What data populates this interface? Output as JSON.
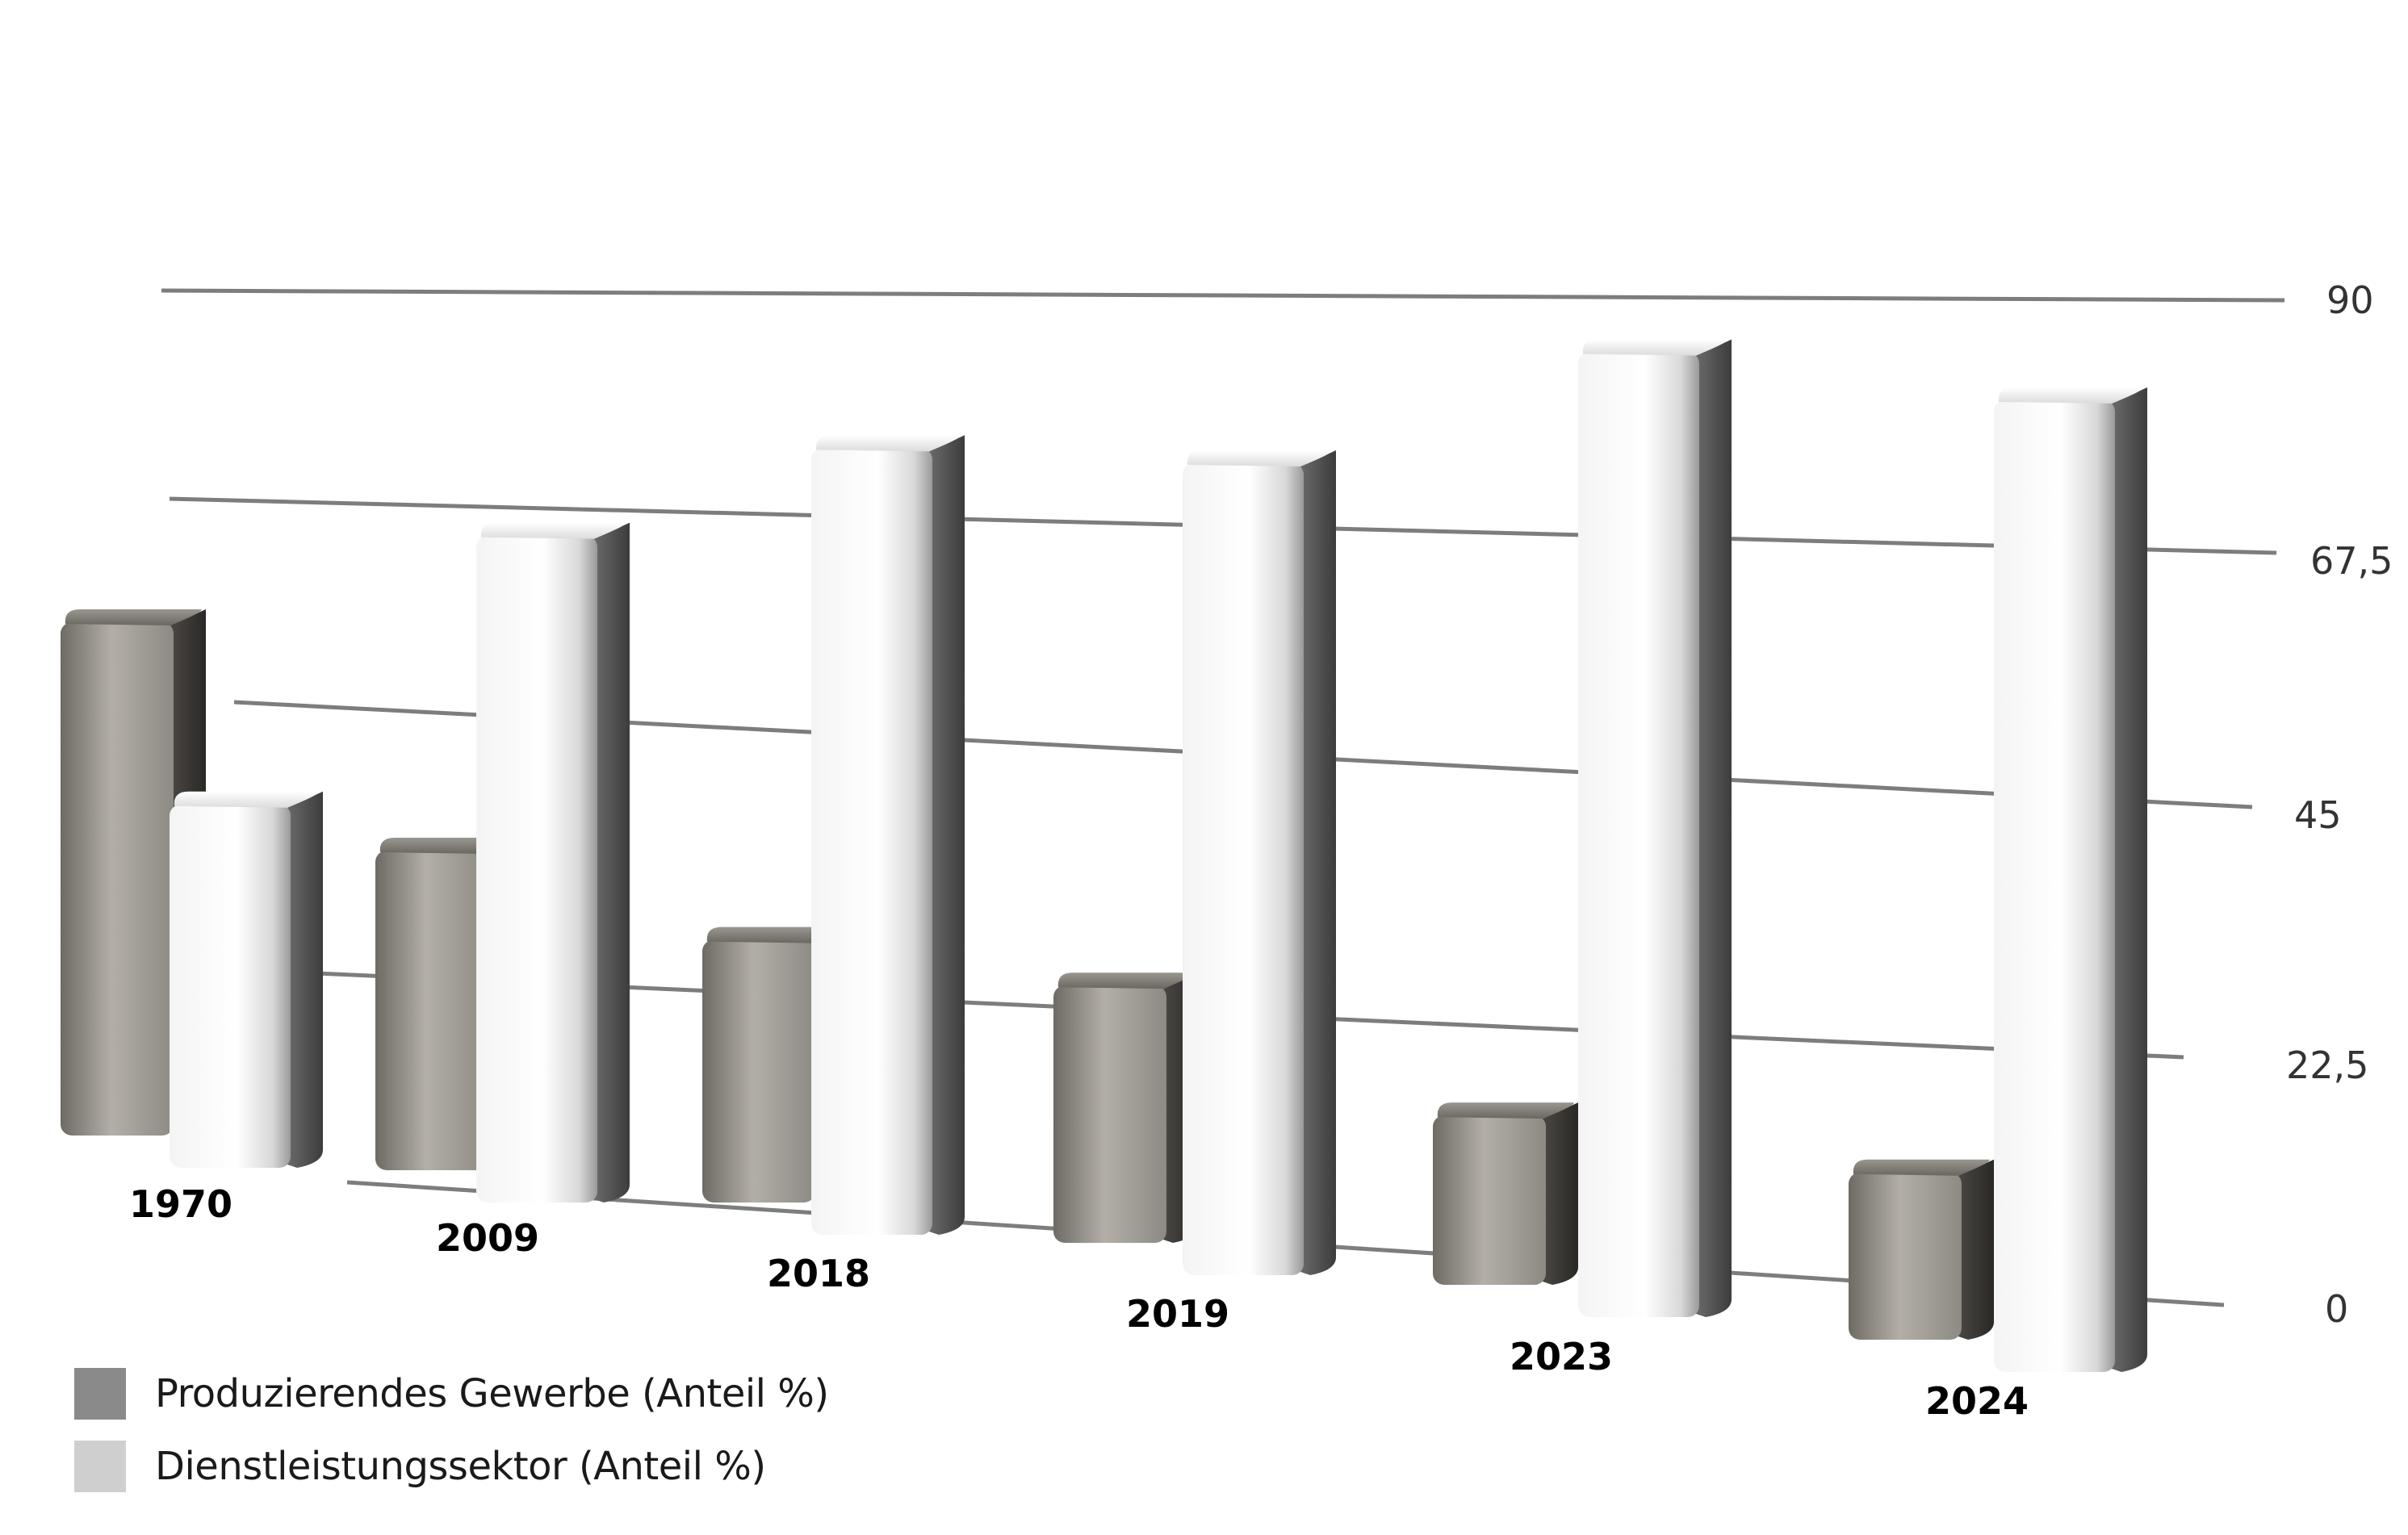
{
  "chart_data": {
    "type": "bar",
    "title": "",
    "xlabel": "",
    "ylabel": "",
    "categories": [
      "1970",
      "2009",
      "2018",
      "2019",
      "2023",
      "2024"
    ],
    "series": [
      {
        "name": "Produzierendes Gewerbe (Anteil %)",
        "values": [
          49.3,
          30.0,
          24.1,
          23.1,
          15.1,
          14.8
        ],
        "color": "#8a8a8a"
      },
      {
        "name": "Dienstleistungssektor (Anteil %)",
        "values": [
          34.9,
          62.6,
          72.2,
          72.9,
          86.0,
          86.0
        ],
        "color": "#cfcfcf"
      }
    ],
    "ylim": [
      0,
      90
    ],
    "yticks": [
      "0",
      "22,5",
      "45",
      "67,5",
      "90"
    ],
    "grid": true,
    "legend_position": "bottom-left"
  }
}
